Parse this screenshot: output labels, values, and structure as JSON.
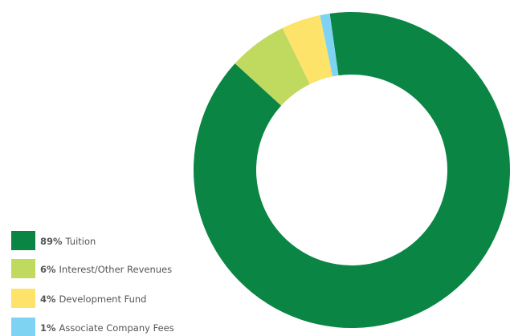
{
  "chart_data": {
    "type": "donut",
    "categories": [
      "Tuition",
      "Interest/Other Revenues",
      "Development Fund",
      "Associate Company Fees"
    ],
    "values": [
      89,
      6,
      4,
      1
    ],
    "value_labels": [
      "89%",
      "6%",
      "4%",
      "1%"
    ],
    "colors": [
      "#0a8543",
      "#c0d95f",
      "#fde36a",
      "#7fd3f2"
    ],
    "legend": "bottom-left"
  }
}
